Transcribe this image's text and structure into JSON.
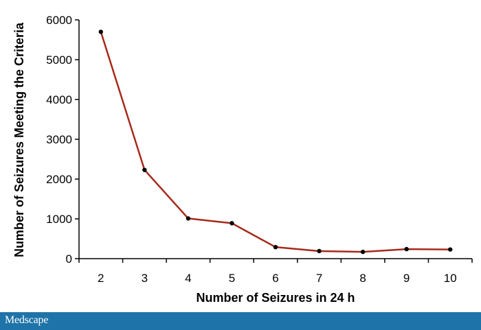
{
  "chart_data": {
    "type": "line",
    "x": [
      2,
      3,
      4,
      5,
      6,
      7,
      8,
      9,
      10
    ],
    "series": [
      {
        "values": [
          5700,
          2230,
          1010,
          890,
          290,
          190,
          170,
          240,
          230
        ],
        "color": "#a52a1a"
      }
    ],
    "xlabel": "Number of Seizures in 24 h",
    "ylabel": "Number of Seizures Meeting the Criteria",
    "xlim": [
      1.5,
      10.5
    ],
    "ylim": [
      0,
      6000
    ],
    "yticks": [
      0,
      1000,
      2000,
      3000,
      4000,
      5000,
      6000
    ],
    "xticks": [
      2,
      3,
      4,
      5,
      6,
      7,
      8,
      9,
      10
    ],
    "grid": false,
    "marker_color": "#000000"
  },
  "footer": {
    "brand": "Medscape",
    "bg_color": "#1e73a8"
  }
}
